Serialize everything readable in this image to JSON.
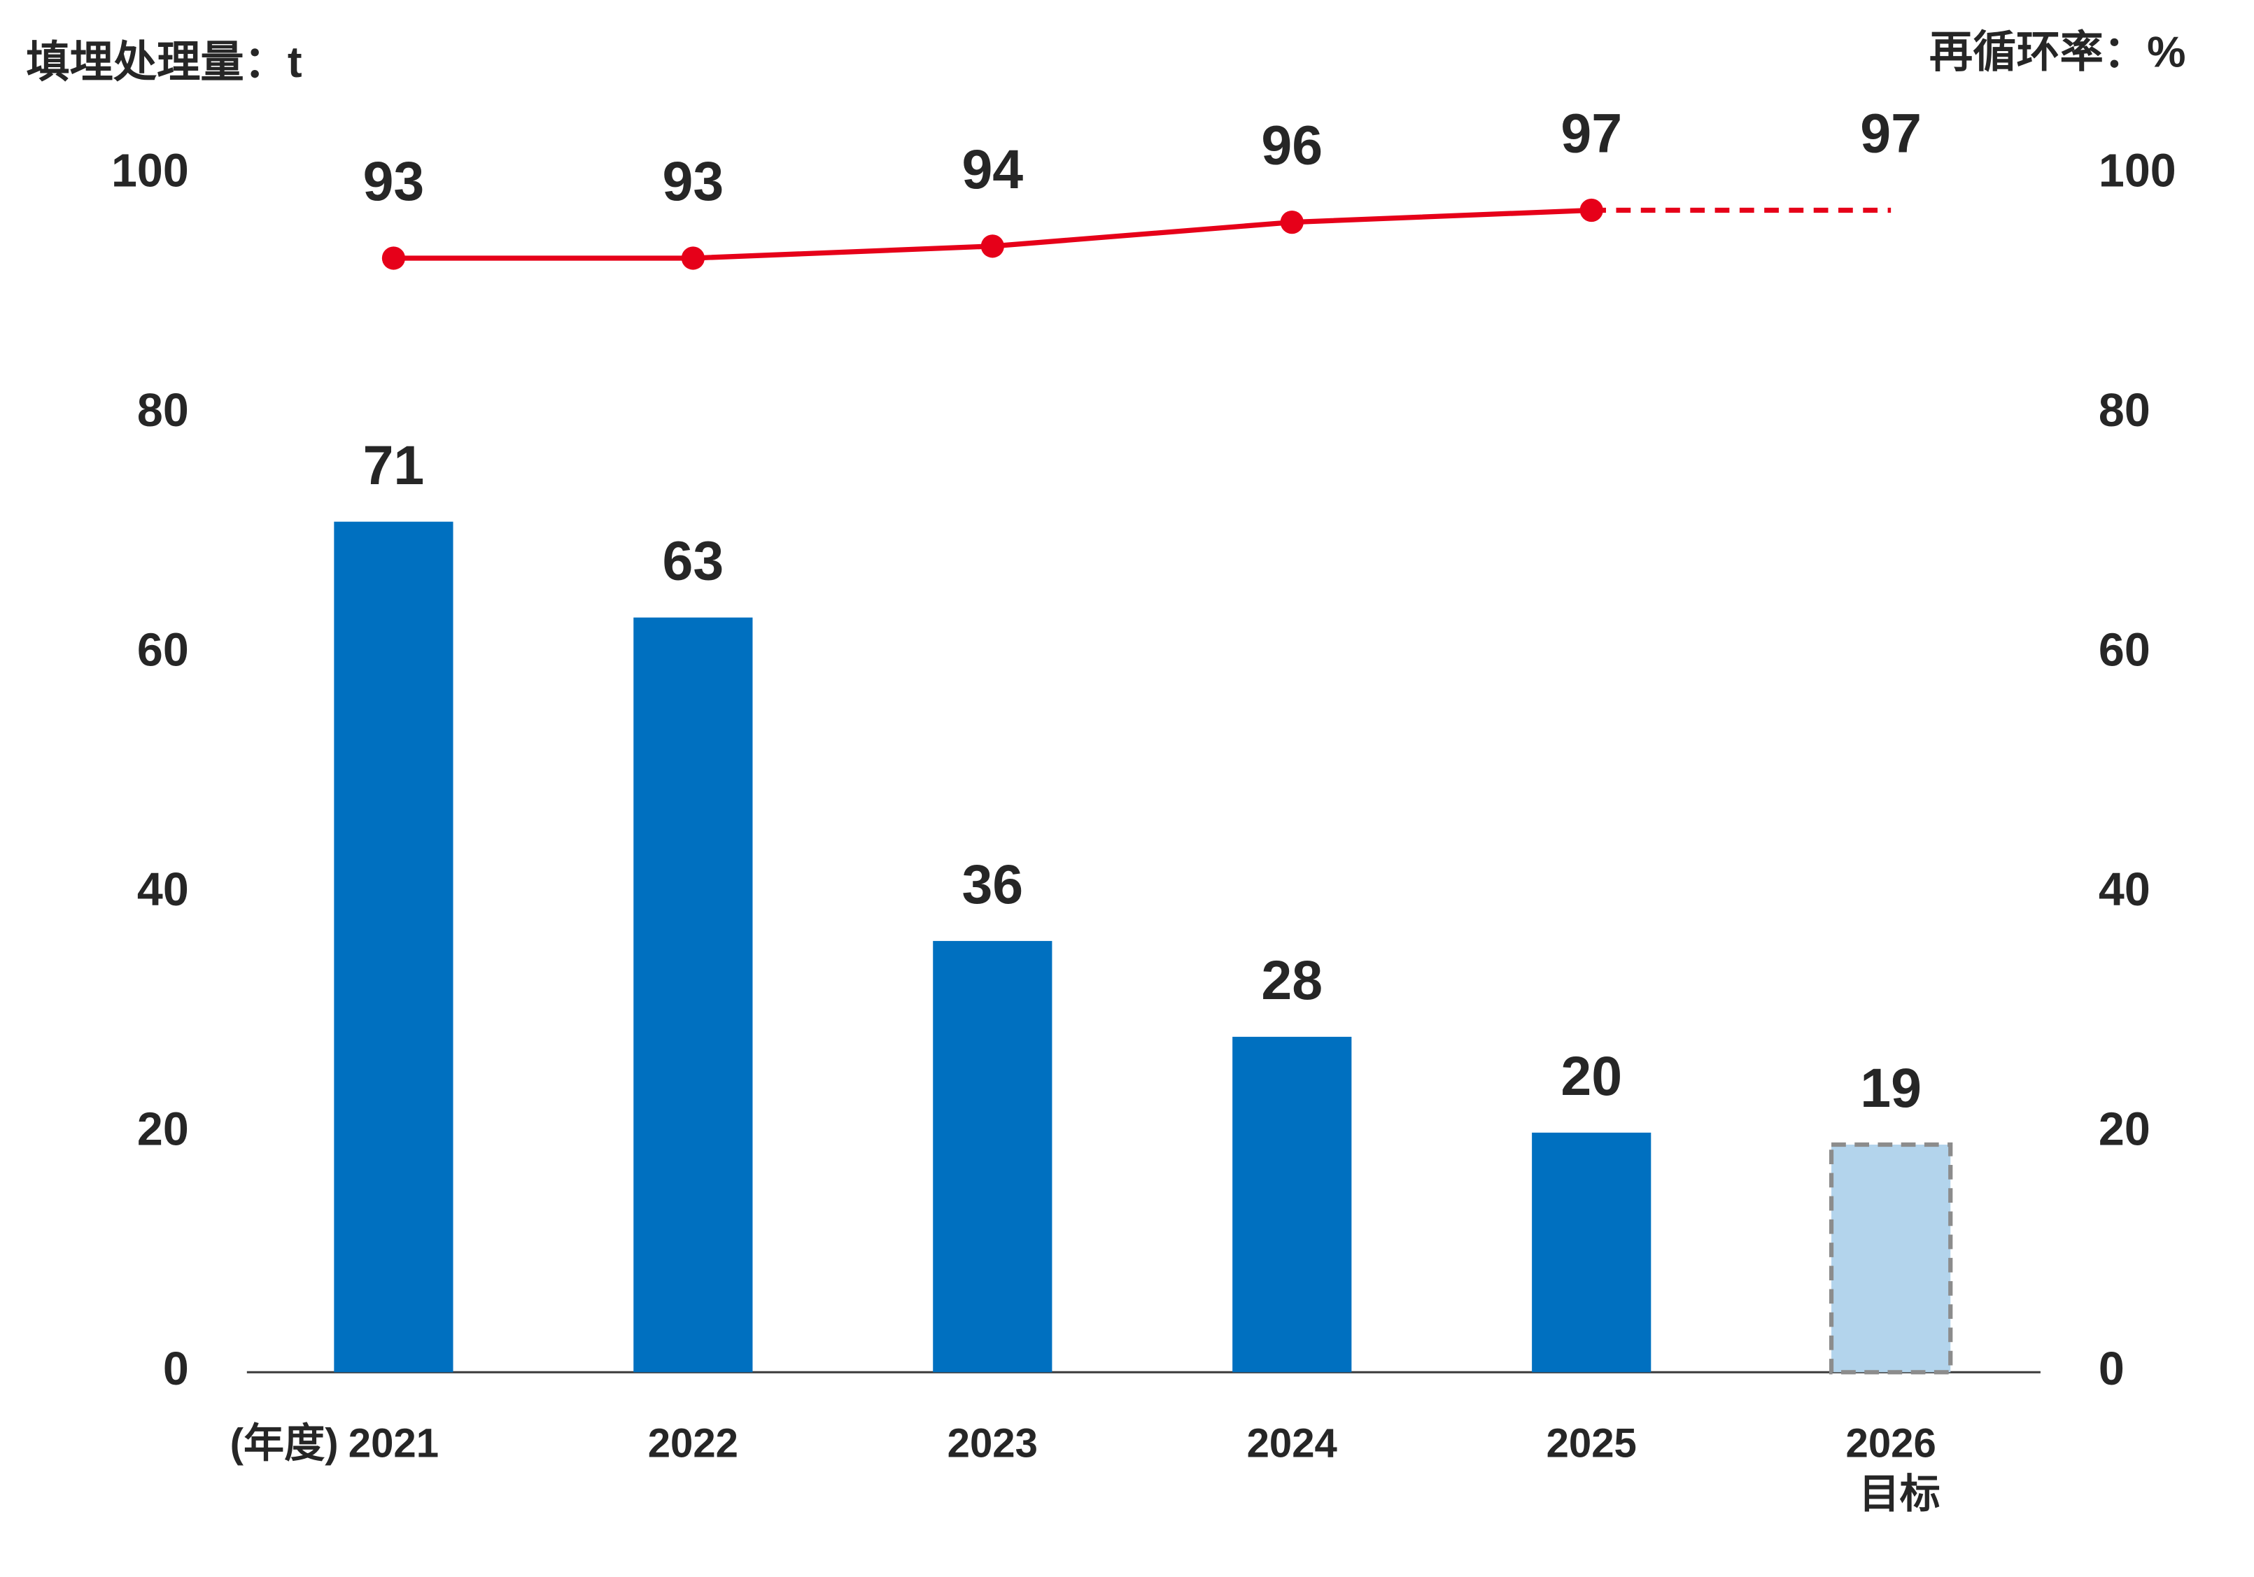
{
  "chart_data": {
    "type": "bar_line",
    "y_title": "填埋处理量：t",
    "y2_title": "再循环率：%",
    "x_prefix": "(年度)",
    "categories": [
      "2021",
      "2022",
      "2023",
      "2024",
      "2025",
      "2026"
    ],
    "category_notes": [
      null,
      null,
      null,
      null,
      null,
      "目标"
    ],
    "series": [
      {
        "name": "填埋处理量",
        "type": "bar",
        "color": "#0070c0",
        "target_color": "#b3d4ec",
        "target_border": "#8c8c8c",
        "styles": [
          "solid",
          "solid",
          "solid",
          "solid",
          "solid",
          "dashed"
        ],
        "values": [
          71,
          63,
          36,
          28,
          20,
          19
        ]
      },
      {
        "name": "再循环率",
        "type": "line",
        "axis": "y2",
        "color": "#e60019",
        "styles": [
          "solid",
          "solid",
          "solid",
          "solid",
          "solid",
          "dashed"
        ],
        "markers": [
          true,
          true,
          true,
          true,
          true,
          false
        ],
        "values": [
          93,
          93,
          94,
          96,
          97,
          97
        ]
      }
    ],
    "ylim": [
      0,
      100
    ],
    "yticks": [
      0,
      20,
      40,
      60,
      80,
      100
    ],
    "y2lim": [
      0,
      100
    ],
    "y2ticks": [
      0,
      20,
      40,
      60,
      80,
      100
    ],
    "grid": false,
    "legend": false
  }
}
